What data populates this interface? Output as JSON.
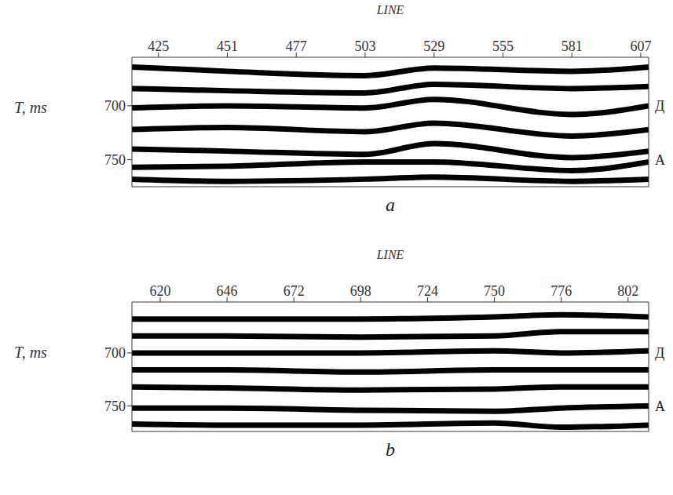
{
  "chart_data": [
    {
      "type": "line",
      "panel_label": "a",
      "x_label": "LINE",
      "y_label": "T, ms",
      "x": [
        415,
        451,
        503,
        529,
        581,
        610
      ],
      "xlim": [
        415,
        610
      ],
      "xticks": [
        425,
        451,
        477,
        503,
        529,
        555,
        581,
        607
      ],
      "ylim": [
        655,
        775
      ],
      "yticks": [
        700,
        750
      ],
      "color": "#000000",
      "annotations": [
        {
          "text": "Д",
          "y": 700
        },
        {
          "text": "А",
          "y": 750
        }
      ],
      "series": [
        {
          "values": [
            664,
            668,
            672,
            665,
            668,
            664
          ]
        },
        {
          "values": [
            684,
            686,
            688,
            680,
            684,
            682
          ]
        },
        {
          "values": [
            702,
            700,
            702,
            694,
            708,
            700
          ]
        },
        {
          "values": [
            722,
            720,
            724,
            716,
            728,
            722
          ]
        },
        {
          "values": [
            740,
            742,
            745,
            735,
            748,
            742
          ]
        },
        {
          "values": [
            757,
            756,
            752,
            752,
            760,
            752
          ]
        },
        {
          "values": [
            768,
            770,
            768,
            766,
            770,
            768
          ]
        }
      ]
    },
    {
      "type": "line",
      "panel_label": "b",
      "x_label": "LINE",
      "y_label": "T, ms",
      "x": [
        609,
        646,
        698,
        750,
        776,
        810
      ],
      "xlim": [
        609,
        810
      ],
      "xticks": [
        620,
        646,
        672,
        698,
        724,
        750,
        776,
        802
      ],
      "ylim": [
        652,
        774
      ],
      "yticks": [
        700,
        750
      ],
      "color": "#000000",
      "annotations": [
        {
          "text": "Д",
          "y": 700
        },
        {
          "text": "А",
          "y": 750
        }
      ],
      "series": [
        {
          "values": [
            668,
            668,
            668,
            666,
            664,
            666
          ]
        },
        {
          "values": [
            684,
            684,
            685,
            684,
            680,
            680
          ]
        },
        {
          "values": [
            700,
            700,
            700,
            698,
            700,
            698
          ]
        },
        {
          "values": [
            716,
            716,
            718,
            716,
            716,
            716
          ]
        },
        {
          "values": [
            732,
            733,
            735,
            734,
            732,
            732
          ]
        },
        {
          "values": [
            752,
            752,
            754,
            755,
            752,
            750
          ]
        },
        {
          "values": [
            767,
            768,
            768,
            766,
            770,
            768
          ]
        }
      ]
    }
  ]
}
